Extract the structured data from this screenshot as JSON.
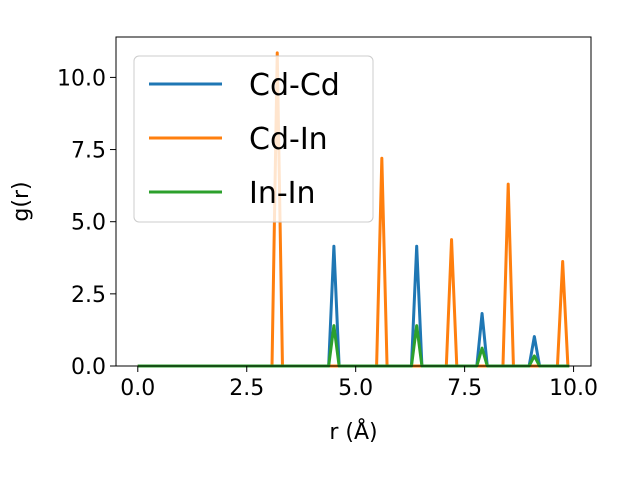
{
  "chart_data": {
    "type": "line",
    "title": "",
    "xlabel": "r (Å)",
    "ylabel": "g(r)",
    "xlim": [
      -0.5,
      10.4
    ],
    "ylim": [
      0,
      11.4
    ],
    "xticks": [
      0.0,
      2.5,
      5.0,
      7.5,
      10.0
    ],
    "xtick_labels": [
      "0.0",
      "2.5",
      "5.0",
      "7.5",
      "10.0"
    ],
    "yticks": [
      0.0,
      2.5,
      5.0,
      7.5,
      10.0
    ],
    "ytick_labels": [
      "0.0",
      "2.5",
      "5.0",
      "7.5",
      "10.0"
    ],
    "grid": false,
    "legend_position": "top-left",
    "series": [
      {
        "name": "Cd-Cd",
        "color": "#1f77b4",
        "points": [
          [
            0.0,
            0.0
          ],
          [
            4.38,
            0.0
          ],
          [
            4.5,
            4.15
          ],
          [
            4.62,
            0.0
          ],
          [
            6.28,
            0.0
          ],
          [
            6.4,
            4.15
          ],
          [
            6.52,
            0.0
          ],
          [
            7.78,
            0.0
          ],
          [
            7.9,
            1.82
          ],
          [
            8.02,
            0.0
          ],
          [
            8.98,
            0.0
          ],
          [
            9.1,
            1.02
          ],
          [
            9.22,
            0.0
          ],
          [
            9.9,
            0.0
          ]
        ]
      },
      {
        "name": "Cd-In",
        "color": "#ff7f0e",
        "points": [
          [
            0.0,
            0.0
          ],
          [
            3.08,
            0.0
          ],
          [
            3.2,
            10.85
          ],
          [
            3.32,
            0.0
          ],
          [
            5.48,
            0.0
          ],
          [
            5.6,
            7.2
          ],
          [
            5.72,
            0.0
          ],
          [
            7.08,
            0.0
          ],
          [
            7.2,
            4.38
          ],
          [
            7.32,
            0.0
          ],
          [
            8.38,
            0.0
          ],
          [
            8.5,
            6.3
          ],
          [
            8.62,
            0.0
          ],
          [
            9.63,
            0.0
          ],
          [
            9.75,
            3.62
          ],
          [
            9.87,
            0.0
          ],
          [
            9.9,
            0.0
          ]
        ]
      },
      {
        "name": "In-In",
        "color": "#2ca02c",
        "points": [
          [
            0.0,
            0.0
          ],
          [
            4.38,
            0.0
          ],
          [
            4.5,
            1.4
          ],
          [
            4.62,
            0.0
          ],
          [
            6.28,
            0.0
          ],
          [
            6.4,
            1.4
          ],
          [
            6.52,
            0.0
          ],
          [
            7.78,
            0.0
          ],
          [
            7.9,
            0.62
          ],
          [
            8.02,
            0.0
          ],
          [
            8.98,
            0.0
          ],
          [
            9.1,
            0.35
          ],
          [
            9.22,
            0.0
          ],
          [
            9.9,
            0.0
          ]
        ]
      }
    ]
  }
}
